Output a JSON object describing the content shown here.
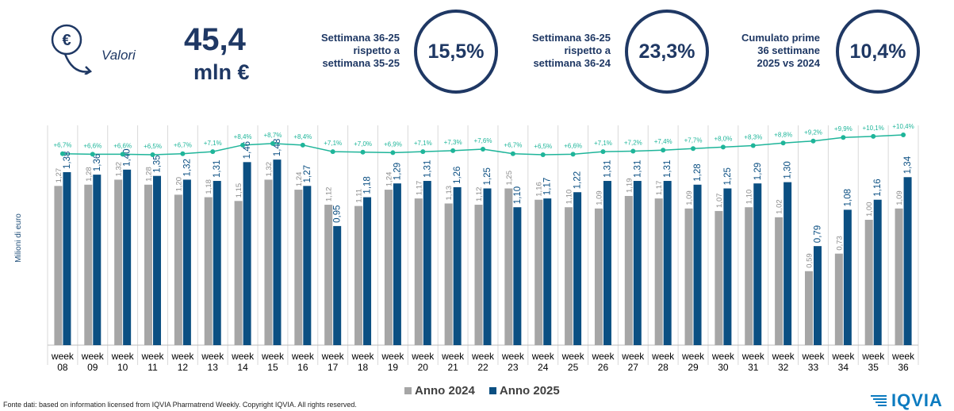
{
  "header": {
    "icon": "euro-down-icon",
    "valori_label": "Valori",
    "value": "45,4",
    "unit": "mln €",
    "kpis": [
      {
        "lines": [
          "Settimana 36-25",
          "rispetto a",
          "settimana 35-25"
        ],
        "value": "15,5%"
      },
      {
        "lines": [
          "Settimana 36-25",
          "rispetto a",
          "settimana 36-24"
        ],
        "value": "23,3%"
      },
      {
        "lines": [
          "Cumulato prime",
          "36 settimane",
          "2025 vs 2024"
        ],
        "value": "10,4%"
      }
    ]
  },
  "chart_data": {
    "type": "bar",
    "ylabel": "Milioni di euro",
    "categories": [
      "week 08",
      "week 09",
      "week 10",
      "week 11",
      "week 12",
      "week 13",
      "week 14",
      "week 15",
      "week 16",
      "week 17",
      "week 18",
      "week 19",
      "week 20",
      "week 21",
      "week 22",
      "week 23",
      "week 24",
      "week 25",
      "week 26",
      "week 27",
      "week 28",
      "week 29",
      "week 30",
      "week 31",
      "week 32",
      "week 33",
      "week 34",
      "week 35",
      "week 36"
    ],
    "series": [
      {
        "name": "Anno 2024",
        "color": "#a6a6a6",
        "labels": [
          "1,27",
          "1,28",
          "1,32",
          "1,28",
          "1,20",
          "1,18",
          "1,15",
          "1,32",
          "1,24",
          "1,12",
          "1,11",
          "1,24",
          "1,17",
          "1,13",
          "1,12",
          "1,25",
          "1,16",
          "1,10",
          "1,09",
          "1,19",
          "1,17",
          "1,09",
          "1,07",
          "1,10",
          "1,02",
          "0,59",
          "0,73",
          "1,00",
          "1,09"
        ],
        "values": [
          1.27,
          1.28,
          1.32,
          1.28,
          1.2,
          1.18,
          1.15,
          1.32,
          1.24,
          1.12,
          1.11,
          1.24,
          1.17,
          1.13,
          1.12,
          1.25,
          1.16,
          1.1,
          1.09,
          1.19,
          1.17,
          1.09,
          1.07,
          1.1,
          1.02,
          0.59,
          0.73,
          1.0,
          1.09
        ]
      },
      {
        "name": "Anno 2025",
        "color": "#0b4f82",
        "labels": [
          "1,38",
          "1,36",
          "1,40",
          "1,35",
          "1,32",
          "1,31",
          "1,46",
          "1,48",
          "1,27",
          "0,95",
          "1,18",
          "1,29",
          "1,31",
          "1,26",
          "1,25",
          "1,10",
          "1,17",
          "1,22",
          "1,31",
          "1,31",
          "1,31",
          "1,28",
          "1,25",
          "1,29",
          "1,30",
          "0,79",
          "1,08",
          "1,16",
          "1,34"
        ],
        "values": [
          1.38,
          1.36,
          1.4,
          1.35,
          1.32,
          1.31,
          1.46,
          1.48,
          1.27,
          0.95,
          1.18,
          1.29,
          1.31,
          1.26,
          1.25,
          1.1,
          1.17,
          1.22,
          1.31,
          1.31,
          1.31,
          1.28,
          1.25,
          1.29,
          1.3,
          0.79,
          1.08,
          1.16,
          1.34
        ]
      }
    ],
    "growth_line": {
      "color": "#1fb59a",
      "labels": [
        "+6,7%",
        "+6,6%",
        "+6,6%",
        "+6,5%",
        "+6,7%",
        "+7,1%",
        "+8,4%",
        "+8,7%",
        "+8,4%",
        "+7,1%",
        "+7,0%",
        "+6,9%",
        "+7,1%",
        "+7,3%",
        "+7,6%",
        "+6,7%",
        "+6,5%",
        "+6,6%",
        "+7,1%",
        "+7,2%",
        "+7,4%",
        "+7,7%",
        "+8,0%",
        "+8,3%",
        "+8,8%",
        "+9,2%",
        "+9,9%",
        "+10,1%",
        "+10,4%"
      ],
      "values": [
        6.7,
        6.6,
        6.6,
        6.5,
        6.7,
        7.1,
        8.4,
        8.7,
        8.4,
        7.1,
        7.0,
        6.9,
        7.1,
        7.3,
        7.6,
        6.7,
        6.5,
        6.6,
        7.1,
        7.2,
        7.4,
        7.7,
        8.0,
        8.3,
        8.8,
        9.2,
        9.9,
        10.1,
        10.4
      ]
    },
    "ylim": [
      0,
      1.6
    ],
    "legend": "bottom-center"
  },
  "footer": "Fonte dati: based on information licensed from IQVIA Pharmatrend Weekly. Copyright IQVIA. All rights reserved.",
  "logo_text": "IQVIA"
}
